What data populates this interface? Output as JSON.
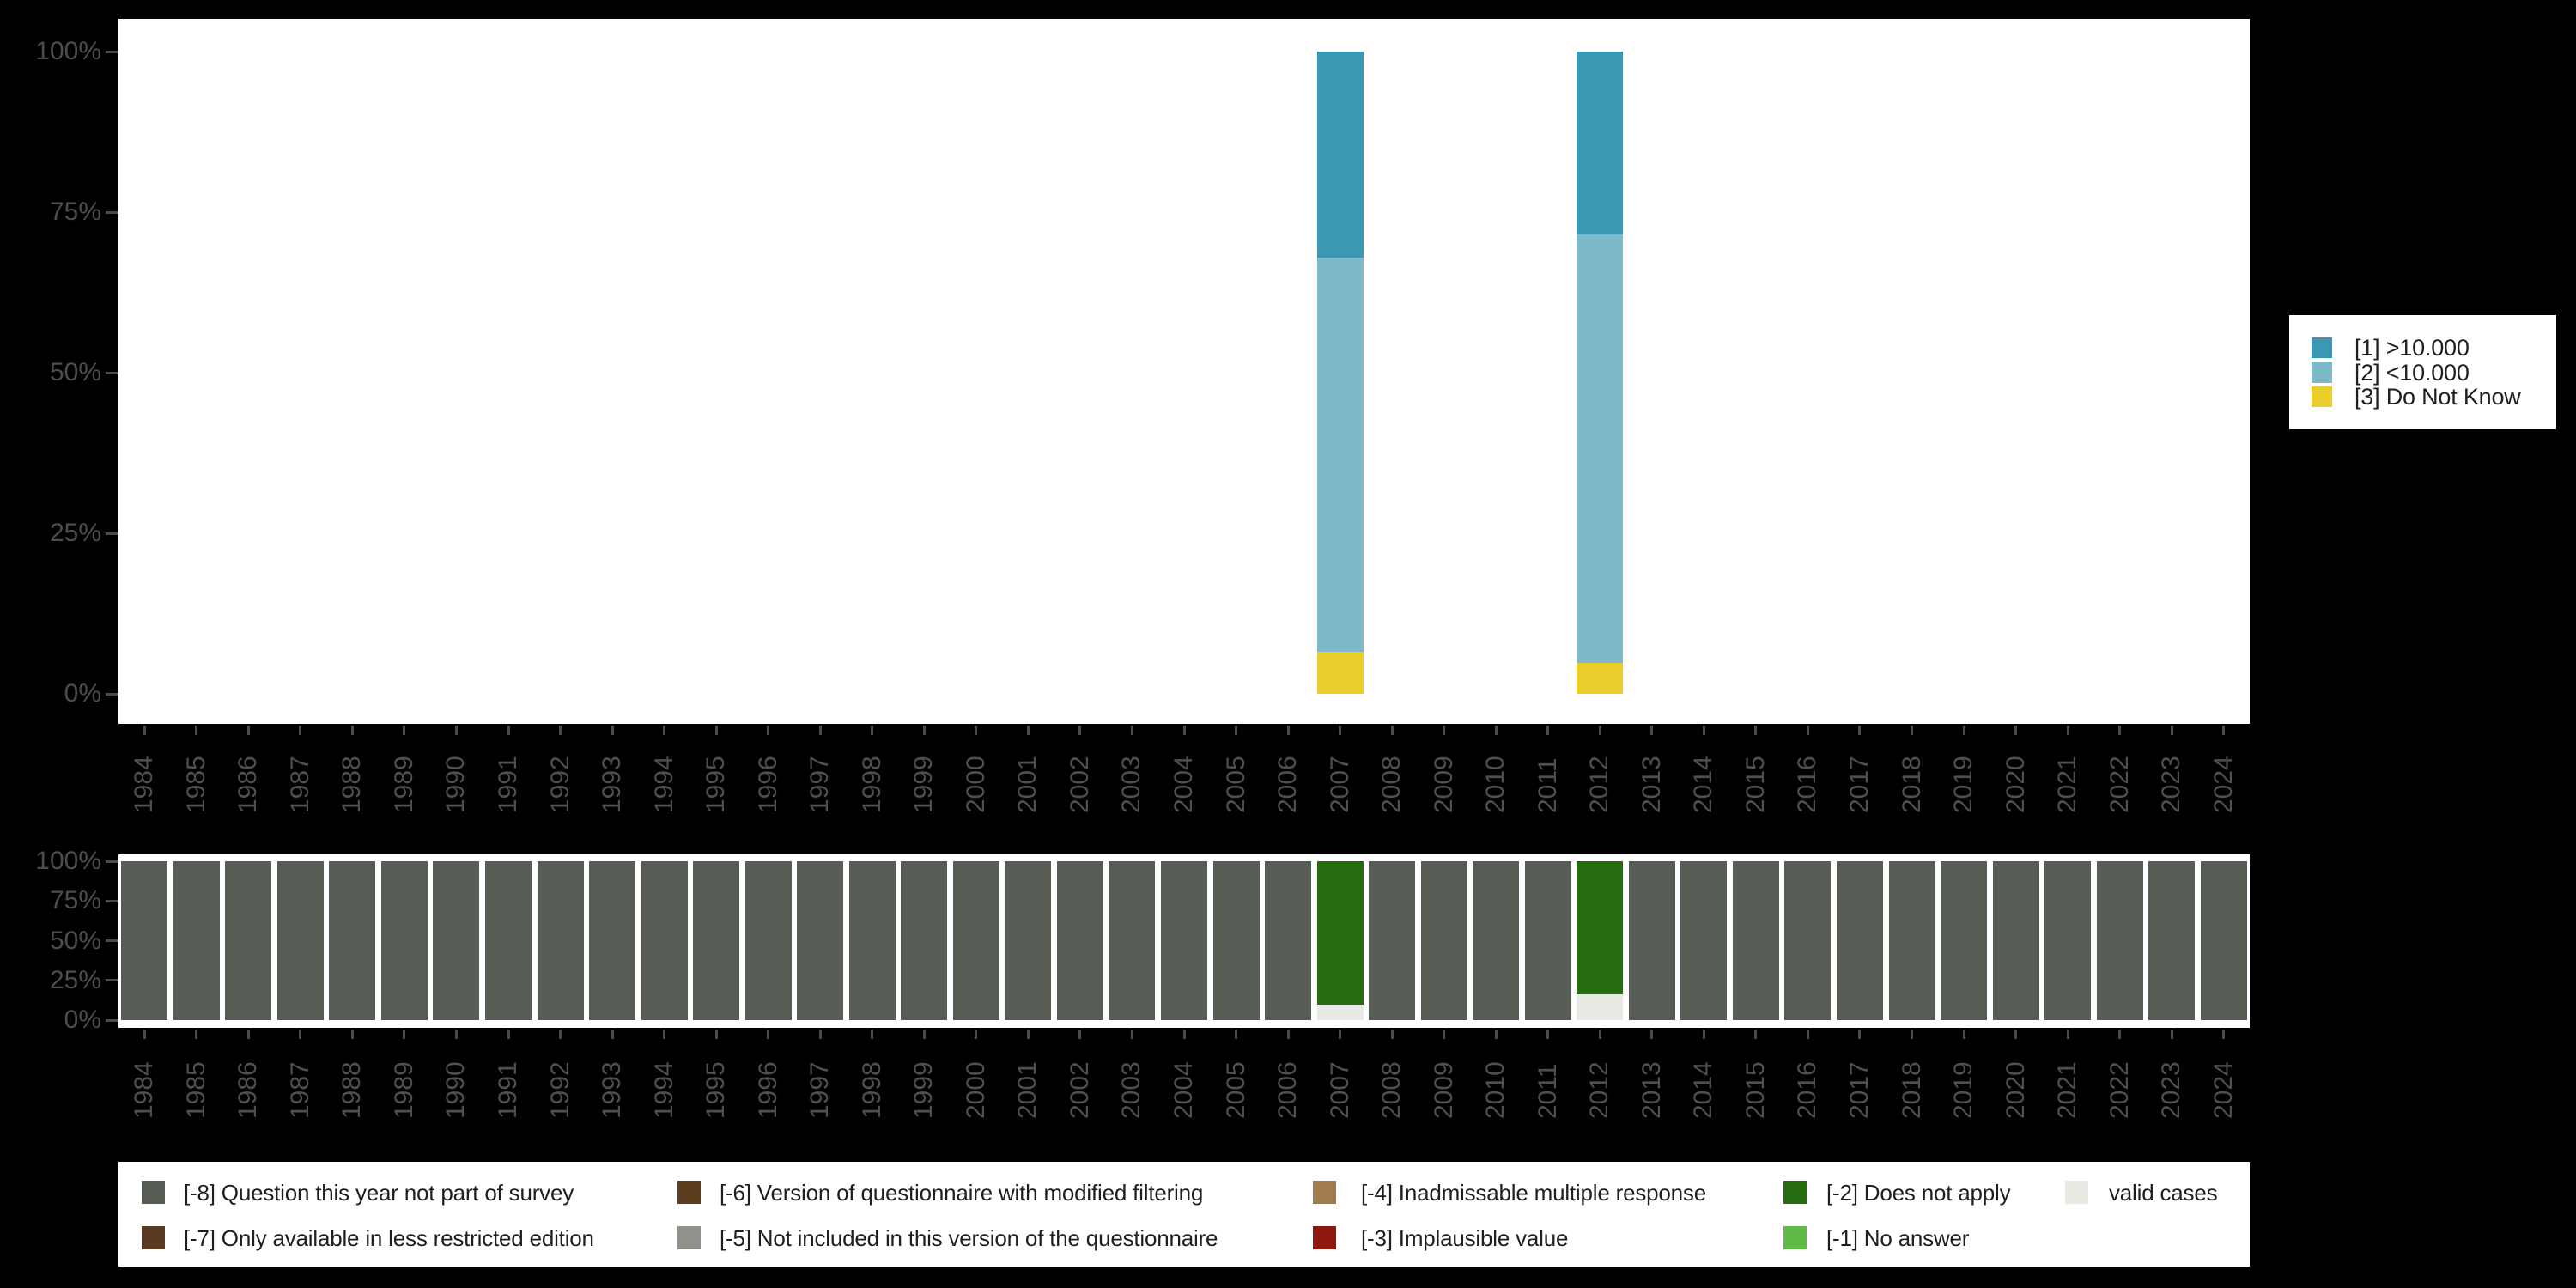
{
  "background": "#000000",
  "axis": {
    "text_color": "#4d4d4d",
    "tick_color": "#4a4a4a",
    "y_tick_labels": [
      "100%",
      "75%",
      "50%",
      "25%",
      "0%"
    ],
    "y_tick_values": [
      100,
      75,
      50,
      25,
      0
    ]
  },
  "chart_data": [
    {
      "type": "bar",
      "stacked": true,
      "title": "",
      "xlabel": "",
      "ylabel": "",
      "ylim": [
        0,
        100
      ],
      "grid": false,
      "legend_position": "right",
      "categories": [
        "1984",
        "1985",
        "1986",
        "1987",
        "1988",
        "1989",
        "1990",
        "1991",
        "1992",
        "1993",
        "1994",
        "1995",
        "1996",
        "1997",
        "1998",
        "1999",
        "2000",
        "2001",
        "2002",
        "2003",
        "2004",
        "2005",
        "2006",
        "2007",
        "2008",
        "2009",
        "2010",
        "2011",
        "2012",
        "2013",
        "2014",
        "2015",
        "2016",
        "2017",
        "2018",
        "2019",
        "2020",
        "2021",
        "2022",
        "2023",
        "2024"
      ],
      "series": [
        {
          "name": "[1] >10.000",
          "color": "#3a98b2",
          "values": {
            "2007": 32.1,
            "2012": 28.5
          }
        },
        {
          "name": "[2] <10.000",
          "color": "#7db9c8",
          "values": {
            "2007": 61.3,
            "2012": 66.7
          }
        },
        {
          "name": "[3] Do Not Know",
          "color": "#e8cd2b",
          "values": {
            "2007": 6.6,
            "2012": 4.8
          }
        }
      ]
    },
    {
      "type": "bar",
      "stacked": true,
      "title": "",
      "xlabel": "",
      "ylabel": "",
      "ylim": [
        0,
        100
      ],
      "grid": false,
      "legend_position": "bottom",
      "categories": [
        "1984",
        "1985",
        "1986",
        "1987",
        "1988",
        "1989",
        "1990",
        "1991",
        "1992",
        "1993",
        "1994",
        "1995",
        "1996",
        "1997",
        "1998",
        "1999",
        "2000",
        "2001",
        "2002",
        "2003",
        "2004",
        "2005",
        "2006",
        "2007",
        "2008",
        "2009",
        "2010",
        "2011",
        "2012",
        "2013",
        "2014",
        "2015",
        "2016",
        "2017",
        "2018",
        "2019",
        "2020",
        "2021",
        "2022",
        "2023",
        "2024"
      ],
      "series": [
        {
          "name": "[-8] Question this year not part of survey",
          "color": "#575c55",
          "values": {
            "1984": 100,
            "1985": 100,
            "1986": 100,
            "1987": 100,
            "1988": 100,
            "1989": 100,
            "1990": 100,
            "1991": 100,
            "1992": 100,
            "1993": 100,
            "1994": 100,
            "1995": 100,
            "1996": 100,
            "1997": 100,
            "1998": 100,
            "1999": 100,
            "2000": 100,
            "2001": 100,
            "2002": 100,
            "2003": 100,
            "2004": 100,
            "2005": 100,
            "2006": 100,
            "2008": 100,
            "2009": 100,
            "2010": 100,
            "2011": 100,
            "2013": 100,
            "2014": 100,
            "2015": 100,
            "2016": 100,
            "2017": 100,
            "2018": 100,
            "2019": 100,
            "2020": 100,
            "2021": 100,
            "2022": 100,
            "2023": 100,
            "2024": 100
          }
        },
        {
          "name": "[-2] Does not apply",
          "color": "#256b10",
          "values": {
            "2007": 90.4,
            "2012": 84.0
          }
        },
        {
          "name": "valid cases",
          "color": "#e7ebe3",
          "values": {
            "2007": 9.6,
            "2012": 16.0
          }
        }
      ]
    }
  ],
  "top_legend": {
    "items": [
      {
        "label": "[1] >10.000",
        "color": "#3a98b2"
      },
      {
        "label": "[2] <10.000",
        "color": "#7db9c8"
      },
      {
        "label": "[3] Do Not Know",
        "color": "#e8cd2b"
      }
    ]
  },
  "bottom_legend": {
    "items": [
      {
        "code": "-8",
        "label": "[-8] Question this year not part of survey",
        "color": "#575c55",
        "row": 0,
        "col": 0
      },
      {
        "code": "-7",
        "label": "[-7] Only available in less restricted edition",
        "color": "#5a3a22",
        "row": 1,
        "col": 0
      },
      {
        "code": "-6",
        "label": "[-6] Version of questionnaire with modified filtering",
        "color": "#5e3c20",
        "row": 0,
        "col": 1
      },
      {
        "code": "-5",
        "label": "[-5] Not included in this version of the questionnaire",
        "color": "#90938c",
        "row": 1,
        "col": 1
      },
      {
        "code": "-4",
        "label": "[-4] Inadmissable multiple response",
        "color": "#a17c4d",
        "row": 0,
        "col": 2
      },
      {
        "code": "-3",
        "label": "[-3] Implausible value",
        "color": "#8e170e",
        "row": 1,
        "col": 2
      },
      {
        "code": "-2",
        "label": "[-2] Does not apply",
        "color": "#256b10",
        "row": 0,
        "col": 3
      },
      {
        "code": "-1",
        "label": "[-1] No answer",
        "color": "#62ba46",
        "row": 1,
        "col": 3
      },
      {
        "code": "valid",
        "label": "valid cases",
        "color": "#e7ebe3",
        "row": 0,
        "col": 4
      }
    ]
  }
}
